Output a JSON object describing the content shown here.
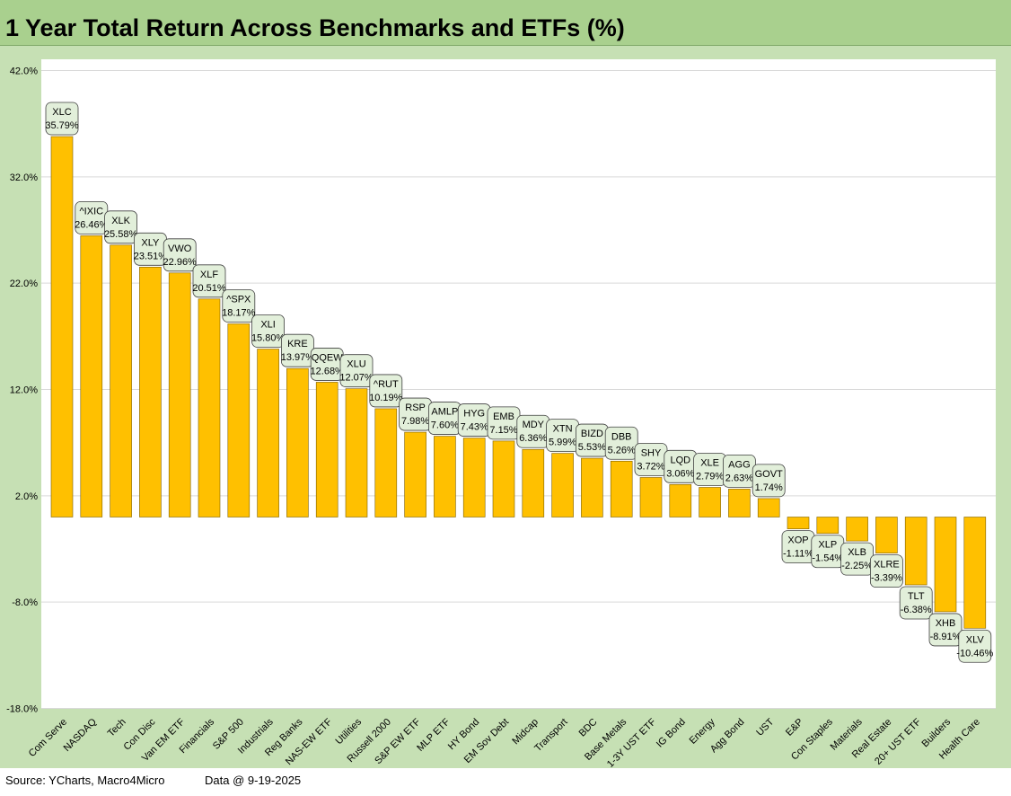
{
  "title": "1 Year Total Return Across Benchmarks and ETFs (%)",
  "footer": {
    "source": "Source: YCharts, Macro4Micro",
    "date": "Data @ 9-19-2025"
  },
  "colors": {
    "bar": "#ffc000",
    "bar_outline": "#7f6000",
    "title_bar": "#a9d08e",
    "frame": "#c6e0b4",
    "label_fill": "#e2efda",
    "gridline": "#d9d9d9"
  },
  "chart_data": {
    "type": "bar",
    "title": "1 Year Total Return Across Benchmarks and ETFs (%)",
    "xlabel": "",
    "ylabel": "",
    "ylim": [
      -18,
      42
    ],
    "yticks": [
      42,
      32,
      22,
      12,
      2,
      -8,
      -18
    ],
    "ytick_labels": [
      "42.0%",
      "32.0%",
      "22.0%",
      "12.0%",
      "2.0%",
      "-8.0%",
      "-18.0%"
    ],
    "grid": true,
    "legend": "none",
    "categories": [
      "Com Serve",
      "NASDAQ",
      "Tech",
      "Con Disc",
      "Van EM ETF",
      "Financials",
      "S&P 500",
      "Industrials",
      "Reg Banks",
      "NAS-EW ETF",
      "Utilities",
      "Russell 2000",
      "S&P EW ETF",
      "MLP ETF",
      "HY Bond",
      "EM Sov Debt",
      "Midcap",
      "Transport",
      "BDC",
      "Base Metals",
      "1-3Y UST ETF",
      "IG Bond",
      "Energy",
      "Agg Bond",
      "UST",
      "E&P",
      "Con Staples",
      "Materials",
      "Real Estate",
      "20+ UST ETF",
      "Builders",
      "Health Care"
    ],
    "tickers": [
      "XLC",
      "^IXIC",
      "XLK",
      "XLY",
      "VWO",
      "XLF",
      "^SPX",
      "XLI",
      "KRE",
      "QQEW",
      "XLU",
      "^RUT",
      "RSP",
      "AMLP",
      "HYG",
      "EMB",
      "MDY",
      "XTN",
      "BIZD",
      "DBB",
      "SHY",
      "LQD",
      "XLE",
      "AGG",
      "GOVT",
      "XOP",
      "XLP",
      "XLB",
      "XLRE",
      "TLT",
      "XHB",
      "XLV"
    ],
    "values": [
      35.79,
      26.46,
      25.58,
      23.51,
      22.96,
      20.51,
      18.17,
      15.8,
      13.97,
      12.68,
      12.07,
      10.19,
      7.98,
      7.6,
      7.43,
      7.15,
      6.36,
      5.99,
      5.53,
      5.26,
      3.72,
      3.06,
      2.79,
      2.63,
      1.74,
      -1.11,
      -1.54,
      -2.25,
      -3.39,
      -6.38,
      -8.91,
      -10.46
    ],
    "value_labels": [
      "35.79%",
      "26.46%",
      "25.58%",
      "23.51%",
      "22.96%",
      "20.51%",
      "18.17%",
      "15.80%",
      "13.97%",
      "12.68%",
      "12.07%",
      "10.19%",
      "7.98%",
      "7.60%",
      "7.43%",
      "7.15%",
      "6.36%",
      "5.99%",
      "5.53%",
      "5.26%",
      "3.72%",
      "3.06%",
      "2.79%",
      "2.63%",
      "1.74%",
      "-1.11%",
      "-1.54%",
      "-2.25%",
      "-3.39%",
      "-6.38%",
      "-8.91%",
      "-10.46%"
    ]
  }
}
